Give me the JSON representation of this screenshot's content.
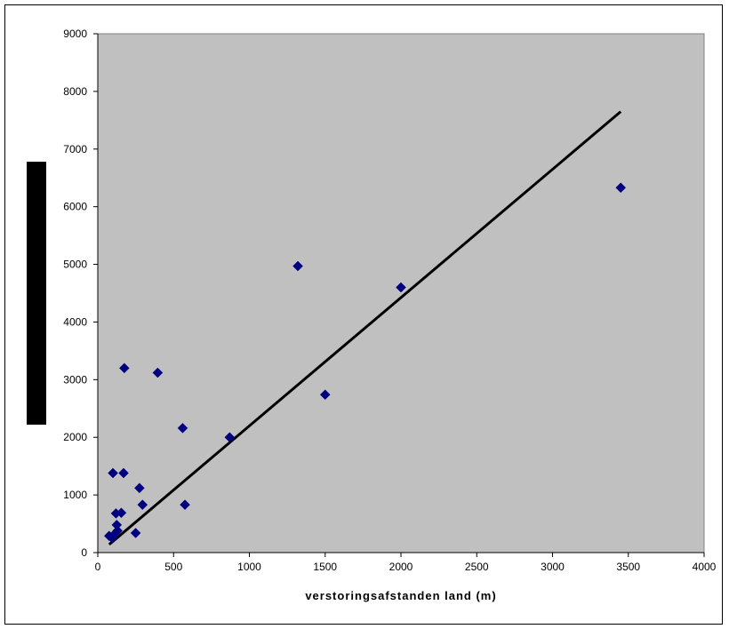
{
  "chart_data": {
    "type": "scatter",
    "title": "",
    "xlabel": "verstoringsafstanden land (m)",
    "ylabel": "",
    "xlim": [
      0,
      4000
    ],
    "ylim": [
      0,
      9000
    ],
    "x_ticks": [
      "0",
      "500",
      "1000",
      "1500",
      "2000",
      "2500",
      "3000",
      "3500",
      "4000"
    ],
    "y_ticks": [
      "0",
      "1000",
      "2000",
      "3000",
      "4000",
      "5000",
      "6000",
      "7000",
      "8000",
      "9000"
    ],
    "grid": false,
    "legend": "none",
    "plot_background": "#c0c0c0",
    "marker_color": "#000080",
    "series": [
      {
        "points": [
          [
            75,
            290
          ],
          [
            95,
            250
          ],
          [
            100,
            1380
          ],
          [
            110,
            320
          ],
          [
            120,
            680
          ],
          [
            125,
            480
          ],
          [
            130,
            380
          ],
          [
            155,
            690
          ],
          [
            170,
            1380
          ],
          [
            175,
            3200
          ],
          [
            250,
            340
          ],
          [
            275,
            1120
          ],
          [
            295,
            830
          ],
          [
            395,
            3120
          ],
          [
            560,
            2160
          ],
          [
            575,
            830
          ],
          [
            870,
            2000
          ],
          [
            1320,
            4970
          ],
          [
            1500,
            2740
          ],
          [
            2000,
            4600
          ],
          [
            3450,
            6330
          ]
        ]
      }
    ],
    "trendline": {
      "x": [
        75,
        3450
      ],
      "y": [
        140,
        7650
      ]
    }
  }
}
